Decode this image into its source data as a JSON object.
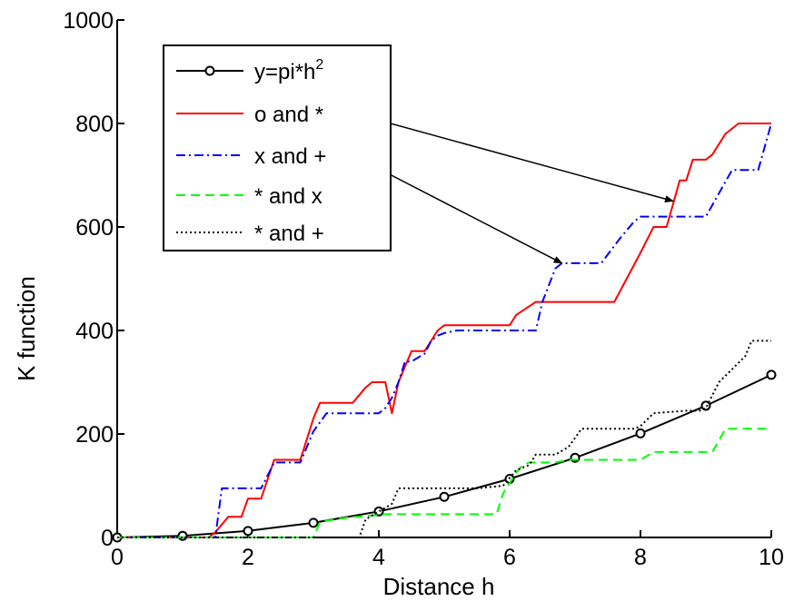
{
  "chart_data": {
    "type": "line",
    "title": "",
    "xlabel": "Distance h",
    "ylabel": "K function",
    "xlim": [
      0,
      10
    ],
    "ylim": [
      0,
      1000
    ],
    "xticks": [
      0,
      2,
      4,
      6,
      8,
      10
    ],
    "yticks": [
      0,
      200,
      400,
      600,
      800,
      1000
    ],
    "xtick_labels": [
      "0",
      "2",
      "4",
      "6",
      "8",
      "10"
    ],
    "ytick_labels": [
      "0",
      "200",
      "400",
      "600",
      "800",
      "1000"
    ],
    "grid": false,
    "legend_position": "top-left",
    "series": [
      {
        "name": "y=pi*h^2",
        "color": "#000000",
        "style": "solid-marker",
        "x": [
          0,
          1,
          2,
          3,
          4,
          5,
          6,
          7,
          8,
          9,
          10
        ],
        "y": [
          0,
          3.1,
          12.6,
          28.3,
          50.3,
          78.5,
          113.1,
          153.9,
          201.1,
          254.5,
          314.2
        ]
      },
      {
        "name": "o and *",
        "color": "#ff0000",
        "style": "solid",
        "x": [
          0,
          1.4,
          1.5,
          1.7,
          1.9,
          2.0,
          2.2,
          2.4,
          2.8,
          3.0,
          3.1,
          3.2,
          3.6,
          3.8,
          3.9,
          4.1,
          4.2,
          4.3,
          4.4,
          4.5,
          4.7,
          4.8,
          4.9,
          5.0,
          6.0,
          6.1,
          6.4,
          7.0,
          7.6,
          8.0,
          8.2,
          8.4,
          8.6,
          8.7,
          8.8,
          9.0,
          9.1,
          9.3,
          9.5,
          9.6,
          10.0
        ],
        "y": [
          0,
          0,
          10,
          40,
          40,
          75,
          75,
          150,
          150,
          230,
          260,
          260,
          260,
          290,
          300,
          300,
          240,
          300,
          330,
          360,
          360,
          380,
          400,
          410,
          410,
          430,
          455,
          455,
          455,
          550,
          600,
          600,
          690,
          690,
          730,
          730,
          740,
          780,
          800,
          800,
          800
        ]
      },
      {
        "name": "x and +",
        "color": "#0000ff",
        "style": "dash-dot",
        "x": [
          0,
          1.5,
          1.6,
          2.0,
          2.2,
          2.4,
          2.8,
          3.0,
          3.2,
          4.0,
          4.1,
          4.2,
          4.3,
          4.4,
          4.5,
          4.7,
          4.8,
          4.9,
          5.0,
          5.2,
          6.4,
          6.5,
          6.7,
          6.8,
          7.4,
          7.7,
          7.9,
          8.0,
          8.2,
          9.0,
          9.2,
          9.4,
          9.8,
          10.0
        ],
        "y": [
          0,
          0,
          95,
          95,
          95,
          145,
          145,
          205,
          240,
          240,
          250,
          270,
          300,
          340,
          340,
          355,
          380,
          390,
          395,
          400,
          400,
          455,
          520,
          530,
          530,
          580,
          610,
          620,
          620,
          620,
          665,
          710,
          710,
          800
        ]
      },
      {
        "name": "* and x",
        "color": "#00ff00",
        "style": "dashed",
        "x": [
          0,
          3.0,
          3.1,
          3.6,
          3.7,
          4.1,
          5.8,
          5.9,
          6.1,
          6.2,
          6.3,
          6.7,
          6.9,
          8.0,
          8.2,
          9.1,
          9.3,
          10.0
        ],
        "y": [
          0,
          0,
          30,
          40,
          40,
          45,
          45,
          85,
          125,
          140,
          145,
          145,
          150,
          150,
          165,
          165,
          210,
          210
        ]
      },
      {
        "name": "* and +",
        "color": "#000000",
        "style": "dotted",
        "x": [
          0,
          3.7,
          3.8,
          4.0,
          4.2,
          4.3,
          4.5,
          4.7,
          5.0,
          5.5,
          5.9,
          6.1,
          6.3,
          6.4,
          6.7,
          6.9,
          7.1,
          7.3,
          7.9,
          8.0,
          8.2,
          8.7,
          8.9,
          9.0,
          9.2,
          9.6,
          9.7,
          10.0
        ],
        "y": [
          0,
          0,
          35,
          50,
          65,
          95,
          95,
          95,
          95,
          95,
          100,
          130,
          140,
          160,
          160,
          175,
          210,
          210,
          210,
          215,
          240,
          245,
          245,
          250,
          300,
          350,
          380,
          380
        ]
      }
    ],
    "annotations": [
      {
        "from_series": "o and *",
        "point": [
          8.5,
          650
        ]
      },
      {
        "from_series": "x and +",
        "point": [
          6.8,
          530
        ]
      }
    ]
  }
}
